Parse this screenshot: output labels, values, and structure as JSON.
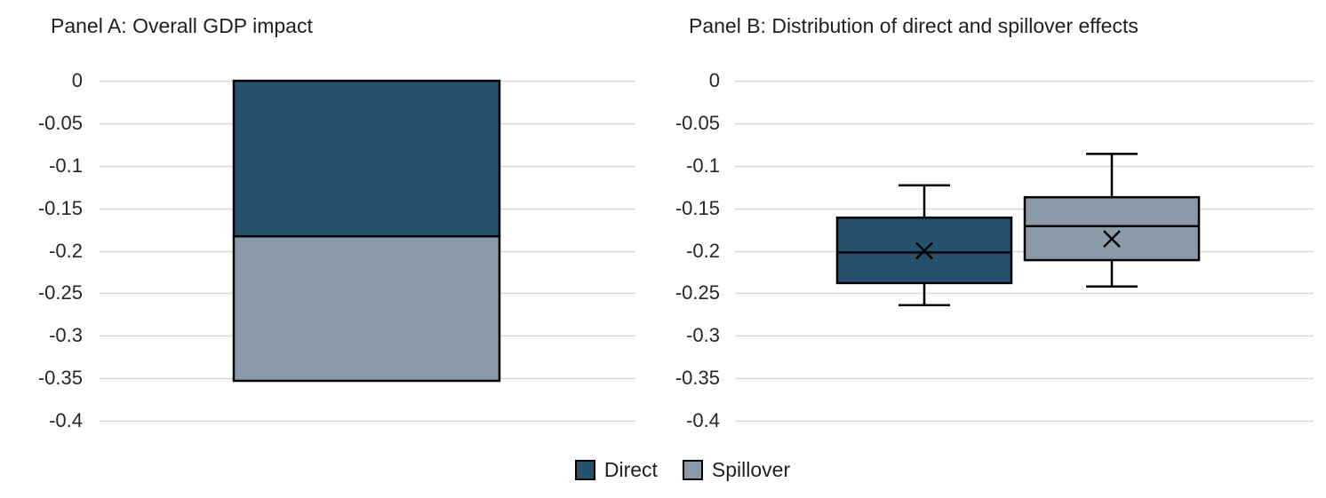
{
  "chart_data": [
    {
      "type": "bar",
      "panel": "Panel A",
      "title": "Panel A: Overall GDP impact",
      "stacked": true,
      "orientation": "vertical",
      "categories": [
        "Overall GDP impact"
      ],
      "series": [
        {
          "name": "Direct",
          "values": [
            -0.183
          ],
          "color": "#25516C"
        },
        {
          "name": "Spillover",
          "values": [
            -0.17
          ],
          "color": "#8A9AA9"
        }
      ],
      "stack_total": -0.353,
      "ylim": [
        -0.4,
        0
      ],
      "yticks": [
        0,
        -0.05,
        -0.1,
        -0.15,
        -0.2,
        -0.25,
        -0.3,
        -0.35,
        -0.4
      ],
      "grid": true
    },
    {
      "type": "box",
      "panel": "Panel B",
      "title": "Panel B: Distribution of direct and spillover effects",
      "series": [
        {
          "name": "Direct",
          "color": "#25516C",
          "whisker_low": -0.264,
          "q1": -0.238,
          "median": -0.202,
          "mean": -0.2,
          "q3": -0.161,
          "whisker_high": -0.123
        },
        {
          "name": "Spillover",
          "color": "#8A9AA9",
          "whisker_low": -0.242,
          "q1": -0.211,
          "median": -0.171,
          "mean": -0.186,
          "q3": -0.137,
          "whisker_high": -0.086
        }
      ],
      "ylim": [
        -0.4,
        0
      ],
      "yticks": [
        0,
        -0.05,
        -0.1,
        -0.15,
        -0.2,
        -0.25,
        -0.3,
        -0.35,
        -0.4
      ],
      "grid": true
    }
  ],
  "legend": {
    "position": "bottom",
    "items": [
      {
        "label": "Direct",
        "color": "#25516C"
      },
      {
        "label": "Spillover",
        "color": "#8A9AA9"
      }
    ]
  },
  "style": {
    "background": "#FFFFFF",
    "gridline_color": "#D9D9D9",
    "text_color": "#262626",
    "outline_color": "#000000"
  }
}
